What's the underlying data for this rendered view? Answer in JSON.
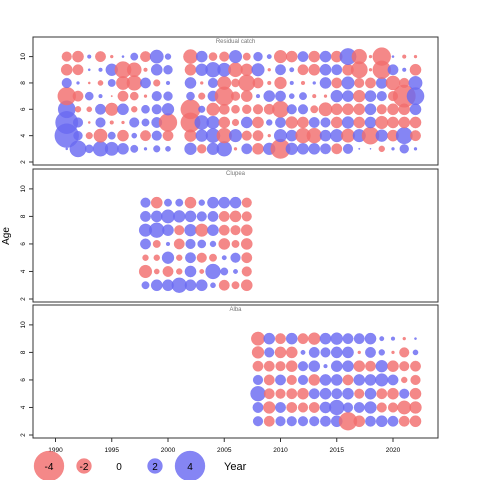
{
  "chart_data": {
    "type": "scatter",
    "description_kind": "bubble residual plot",
    "xlabel": "Year",
    "ylabel": "Age",
    "xlim": [
      1988,
      2024
    ],
    "ylim": [
      1.5,
      11.0
    ],
    "x_ticks": [
      1990,
      1995,
      2000,
      2005,
      2010,
      2015,
      2020
    ],
    "y_ticks": [
      2,
      4,
      6,
      8,
      10
    ],
    "colors": {
      "positive": "#6a6af2",
      "negative": "#f26e6e",
      "frame": "#333333"
    },
    "legend": {
      "placement": "bottom-left",
      "items": [
        {
          "label": "-4",
          "value": -4
        },
        {
          "label": "-2",
          "value": -2
        },
        {
          "label": "0",
          "value": 0
        },
        {
          "label": "2",
          "value": 2
        },
        {
          "label": "4",
          "value": 4
        }
      ]
    },
    "panels": [
      {
        "title": "Residual catch",
        "years": [
          1991,
          1992,
          1993,
          1994,
          1995,
          1996,
          1997,
          1998,
          1999,
          2000,
          2002,
          2003,
          2004,
          2005,
          2006,
          2007,
          2008,
          2009,
          2010,
          2011,
          2012,
          2013,
          2014,
          2015,
          2016,
          2017,
          2018,
          2019,
          2020,
          2021,
          2022
        ],
        "ages": [
          3,
          4,
          5,
          6,
          7,
          8,
          9,
          10
        ],
        "residuals": [
          [
            0.3,
            3.2,
            3.0,
            2.3,
            -2.4,
            1.3,
            -1.5,
            -1.3
          ],
          [
            2.2,
            1.2,
            1.3,
            -0.8,
            -1.4,
            0.4,
            -1.4,
            -1.5
          ],
          [
            1.1,
            -0.9,
            -0.3,
            -0.7,
            1.1,
            -0.3,
            0.3,
            0.5
          ],
          [
            2.0,
            -1.8,
            1.3,
            1.4,
            0.5,
            -0.7,
            0.5,
            -1.4
          ],
          [
            1.8,
            1.0,
            -0.5,
            -1.7,
            -0.2,
            1.0,
            1.6,
            -0.4
          ],
          [
            1.5,
            -1.5,
            -0.4,
            1.5,
            -1.4,
            -1.8,
            -2.2,
            0.3
          ],
          [
            1.0,
            0.7,
            1.3,
            -0.8,
            -1.1,
            -2.0,
            -1.9,
            1.0
          ],
          [
            0.4,
            -1.4,
            1.0,
            1.1,
            -0.4,
            1.4,
            -0.5,
            -1.4
          ],
          [
            0.9,
            1.3,
            1.4,
            1.3,
            1.3,
            -0.9,
            1.5,
            1.8
          ],
          [
            0.7,
            -1.4,
            -2.4,
            1.6,
            1.2,
            0.5,
            1.2,
            0.8
          ],
          [
            1.6,
            -1.6,
            -2.6,
            -2.6,
            1.1,
            1.5,
            -1.5,
            -1.9
          ],
          [
            -1.2,
            1.6,
            1.9,
            0.9,
            -0.9,
            -0.4,
            1.6,
            1.5
          ],
          [
            1.6,
            1.9,
            1.7,
            -1.7,
            1.4,
            1.3,
            2.0,
            -1.1
          ],
          [
            2.0,
            -2.0,
            -1.5,
            -1.4,
            -2.5,
            -1.8,
            1.8,
            -1.3
          ],
          [
            -0.4,
            1.7,
            -0.9,
            -1.1,
            -1.2,
            -1.1,
            -1.9,
            1.7
          ],
          [
            1.4,
            -1.3,
            1.5,
            -1.2,
            -1.5,
            -2.2,
            -1.6,
            -1.0
          ],
          [
            -1.5,
            -1.4,
            -1.5,
            -1.3,
            0.5,
            -1.4,
            1.7,
            1.2
          ],
          [
            1.6,
            -0.4,
            0.8,
            -1.4,
            1.5,
            -0.5,
            -0.4,
            0.6
          ],
          [
            -2.6,
            1.7,
            1.4,
            -2.2,
            1.4,
            -1.6,
            1.4,
            -1.7
          ],
          [
            1.6,
            1.5,
            -1.6,
            1.3,
            0.7,
            0.5,
            0.6,
            -1.5
          ],
          [
            1.5,
            -2.0,
            -1.5,
            1.3,
            1.0,
            -0.5,
            -1.4,
            1.4
          ],
          [
            1.5,
            -2.0,
            1.4,
            -1.0,
            -0.5,
            0.4,
            -1.5,
            -1.5
          ],
          [
            1.4,
            1.5,
            1.3,
            -1.8,
            -0.4,
            1.5,
            1.5,
            1.5
          ],
          [
            -1.4,
            1.7,
            -1.5,
            -1.5,
            1.6,
            -1.4,
            1.4,
            -1.5
          ],
          [
            1.3,
            -1.8,
            1.6,
            -1.5,
            1.5,
            1.7,
            -1.5,
            2.2
          ],
          [
            0.2,
            1.7,
            -1.5,
            -1.5,
            -1.6,
            -1.3,
            -2.2,
            -2.0
          ],
          [
            0.0,
            -2.3,
            1.5,
            1.5,
            1.5,
            -1.4,
            -0.4,
            -0.4
          ],
          [
            -0.8,
            1.6,
            -1.7,
            -1.3,
            1.3,
            1.5,
            -2.4,
            -2.4
          ],
          [
            0.4,
            -1.5,
            -1.5,
            -1.5,
            -1.3,
            -1.9,
            1.4,
            0.3
          ],
          [
            1.2,
            2.2,
            -1.5,
            -1.5,
            -3.0,
            -1.3,
            0.5,
            -0.5
          ],
          [
            0.4,
            -1.4,
            -1.5,
            1.5,
            2.3,
            1.8,
            -1.5,
            -0.4
          ]
        ]
      },
      {
        "title": "Clupea",
        "years": [
          1998,
          1999,
          2000,
          2001,
          2002,
          2003,
          2004,
          2005,
          2006,
          2007
        ],
        "ages": [
          3,
          4,
          5,
          6,
          7,
          8,
          9
        ],
        "residuals": [
          [
            1.0,
            -1.7,
            -0.8,
            1.4,
            1.7,
            1.4,
            1.3
          ],
          [
            1.5,
            -0.7,
            -0.8,
            -1.0,
            2.0,
            1.5,
            -1.5
          ],
          [
            1.5,
            -1.4,
            1.6,
            0.5,
            1.5,
            1.8,
            1.0
          ],
          [
            2.0,
            -0.8,
            -0.8,
            -1.4,
            -1.3,
            1.6,
            1.0
          ],
          [
            1.5,
            1.5,
            1.4,
            1.3,
            1.6,
            1.5,
            -1.5
          ],
          [
            1.5,
            -0.6,
            -1.3,
            1.1,
            -1.7,
            1.3,
            0.8
          ],
          [
            0.7,
            2.0,
            -1.0,
            0.8,
            1.5,
            1.4,
            1.5
          ],
          [
            -1.4,
            1.0,
            0.6,
            -1.5,
            -1.4,
            -1.4,
            1.5
          ],
          [
            -1.0,
            0.6,
            1.3,
            -1.0,
            -1.3,
            -1.5,
            1.5
          ],
          [
            -1.5,
            -1.3,
            -1.4,
            -1.5,
            -1.5,
            -1.3,
            -1.3
          ]
        ]
      },
      {
        "title": "Alba",
        "years": [
          2008,
          2009,
          2010,
          2011,
          2012,
          2013,
          2014,
          2015,
          2016,
          2017,
          2018,
          2019,
          2020,
          2021,
          2022
        ],
        "ages": [
          3,
          4,
          5,
          6,
          7,
          8,
          9
        ],
        "residuals": [
          [
            1.3,
            1.4,
            2.0,
            1.3,
            -1.4,
            -1.6,
            -1.8
          ],
          [
            -1.4,
            -1.6,
            -1.4,
            -1.4,
            -1.4,
            1.3,
            1.5
          ],
          [
            1.3,
            1.4,
            -1.3,
            1.4,
            -1.3,
            -1.5,
            -1.4
          ],
          [
            1.3,
            -1.4,
            -1.4,
            -1.3,
            -1.5,
            -1.5,
            1.5
          ],
          [
            1.3,
            -1.3,
            -1.5,
            1.3,
            1.3,
            0.6,
            -1.4
          ],
          [
            1.3,
            -1.4,
            1.4,
            -1.5,
            1.5,
            1.4,
            -1.6
          ],
          [
            1.4,
            1.5,
            1.5,
            1.5,
            0.5,
            1.3,
            1.5
          ],
          [
            1.5,
            2.0,
            1.4,
            1.5,
            1.5,
            1.5,
            1.6
          ],
          [
            -2.4,
            1.3,
            1.5,
            -1.4,
            1.5,
            1.5,
            1.4
          ],
          [
            -1.5,
            1.4,
            -1.3,
            1.5,
            -1.5,
            -0.4,
            1.4
          ],
          [
            1.4,
            1.6,
            1.5,
            1.5,
            -1.4,
            1.4,
            1.5
          ],
          [
            1.5,
            -1.3,
            -1.4,
            1.7,
            1.6,
            0.8,
            0.6
          ],
          [
            1.4,
            -1.3,
            -1.5,
            1.4,
            -1.5,
            -0.4,
            0.5
          ],
          [
            -1.4,
            -1.8,
            1.3,
            -0.8,
            -1.3,
            -1.3,
            -0.4
          ],
          [
            -1.5,
            -1.6,
            -1.5,
            -1.3,
            -1.4,
            0.7,
            0.3
          ]
        ]
      }
    ]
  }
}
